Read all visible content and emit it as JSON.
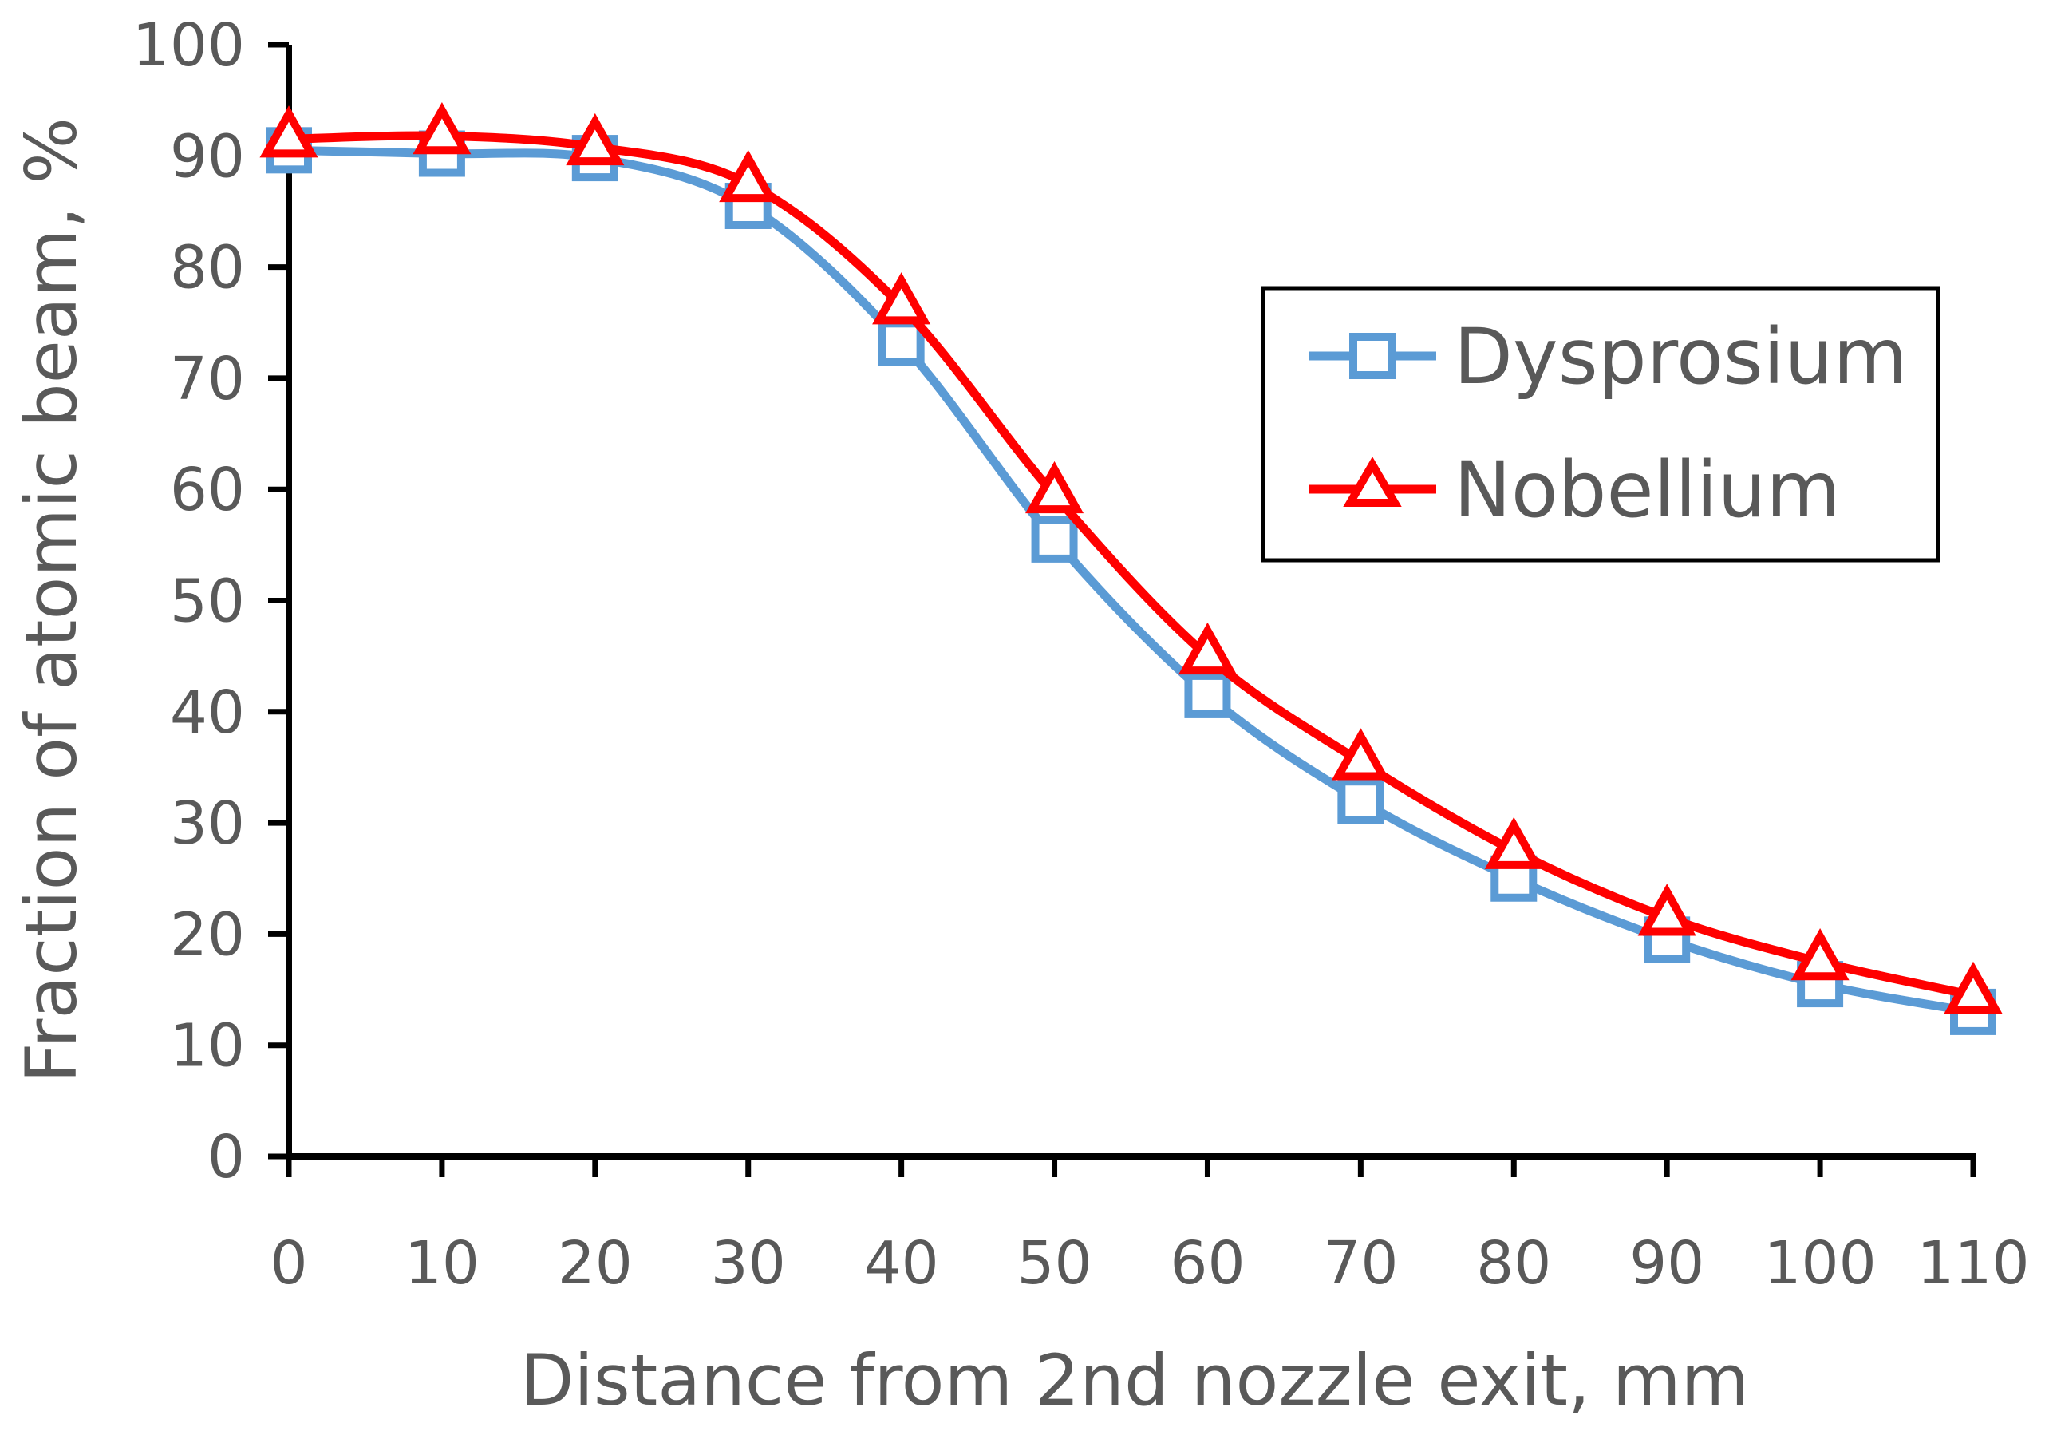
{
  "chart_data": {
    "type": "line",
    "title": "",
    "xlabel": "Distance from 2nd nozzle exit, mm",
    "ylabel": "Fraction of atomic beam, %",
    "x": [
      0,
      10,
      20,
      30,
      40,
      50,
      60,
      70,
      80,
      90,
      100,
      110
    ],
    "xlim": [
      0,
      110
    ],
    "ylim": [
      0,
      100
    ],
    "xticks": [
      "0",
      "10",
      "20",
      "30",
      "40",
      "50",
      "60",
      "70",
      "80",
      "90",
      "100",
      "110"
    ],
    "yticks": [
      "0",
      "10",
      "20",
      "30",
      "40",
      "50",
      "60",
      "70",
      "80",
      "90",
      "100"
    ],
    "grid": false,
    "legend_position": "right",
    "series": [
      {
        "name": "Dysprosium",
        "color": "#5B9BD5",
        "marker": "square",
        "values": [
          90.5,
          90.2,
          89.8,
          85.5,
          73.2,
          55.5,
          41.5,
          32.0,
          25.0,
          19.5,
          15.5,
          13.0
        ]
      },
      {
        "name": "Nobellium",
        "color": "#FF0000",
        "marker": "triangle",
        "values": [
          91.5,
          91.8,
          90.8,
          87.5,
          76.5,
          59.5,
          45.0,
          35.5,
          27.5,
          21.5,
          17.5,
          14.5
        ]
      }
    ]
  }
}
